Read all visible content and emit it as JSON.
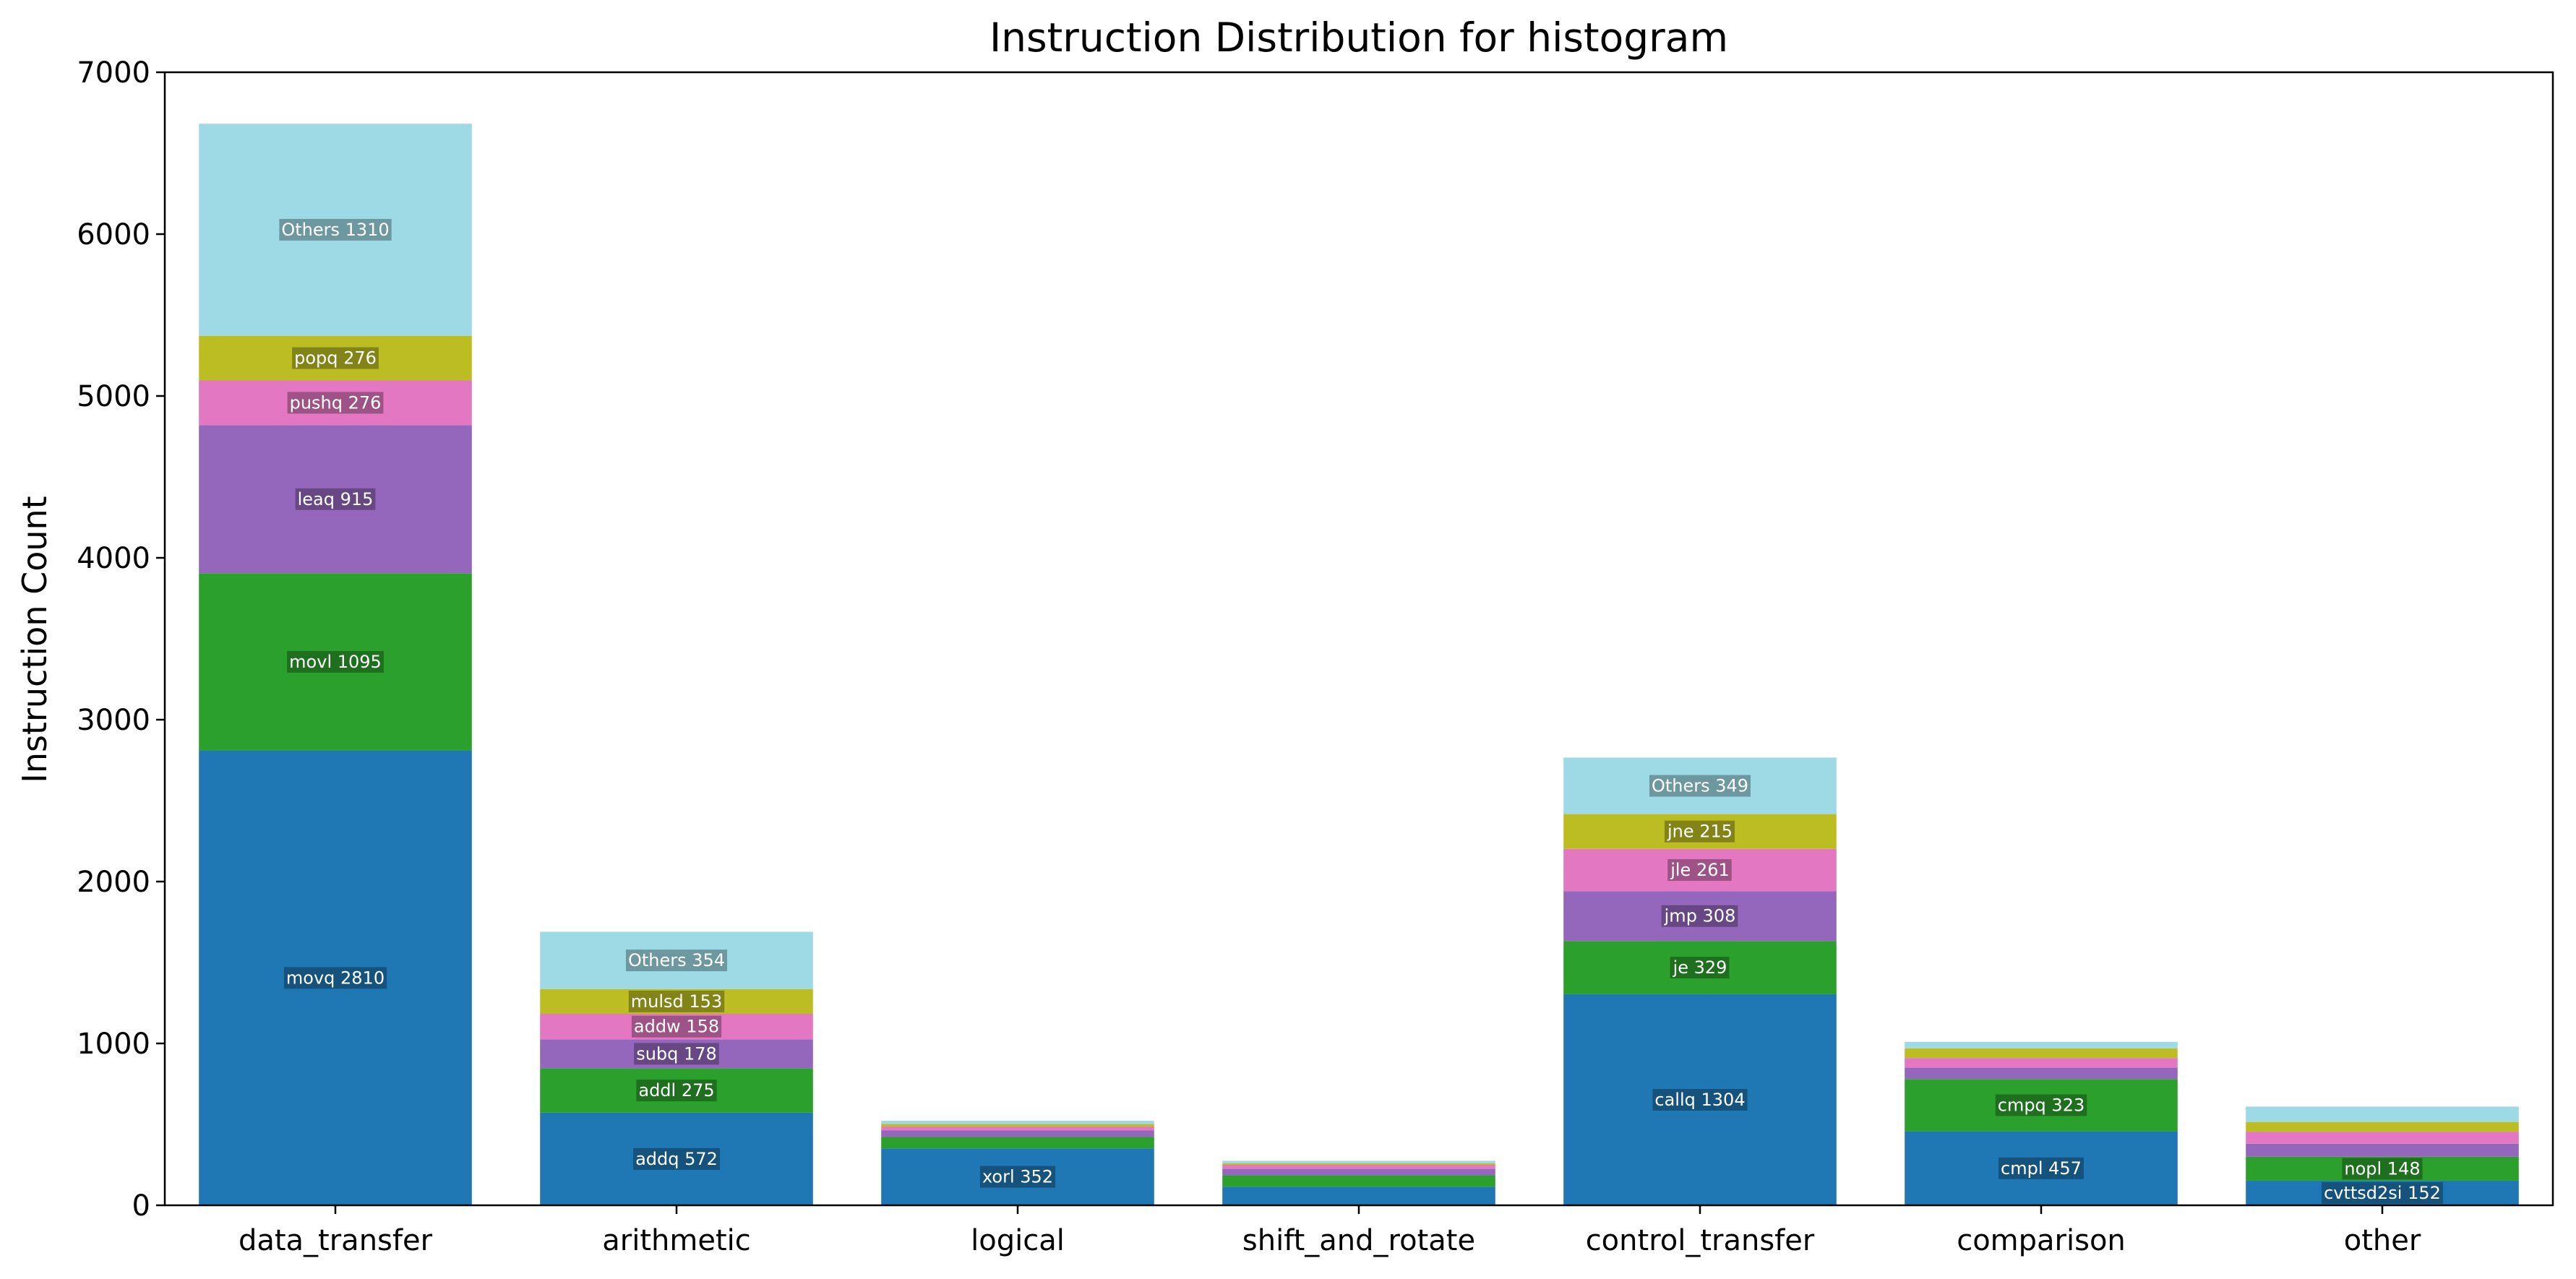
{
  "chart_data": {
    "type": "bar",
    "stacked": true,
    "title": "Instruction Distribution for histogram",
    "xlabel": "",
    "ylabel": "Instruction Count",
    "ylim": [
      0,
      7000
    ],
    "yticks": [
      0,
      1000,
      2000,
      3000,
      4000,
      5000,
      6000,
      7000
    ],
    "grid": false,
    "legend": "none",
    "colors": [
      "#1f77b4",
      "#2ca02c",
      "#9467bd",
      "#e377c2",
      "#bcbd22",
      "#9edae5"
    ],
    "categories": [
      "data_transfer",
      "arithmetic",
      "logical",
      "shift_and_rotate",
      "control_transfer",
      "comparison",
      "other"
    ],
    "stacks": [
      {
        "category": "data_transfer",
        "segments": [
          {
            "name": "movq",
            "value": 2810,
            "label": "movq 2810"
          },
          {
            "name": "movl",
            "value": 1095,
            "label": "movl 1095"
          },
          {
            "name": "leaq",
            "value": 915,
            "label": "leaq 915"
          },
          {
            "name": "pushq",
            "value": 276,
            "label": "pushq 276"
          },
          {
            "name": "popq",
            "value": 276,
            "label": "popq 276"
          },
          {
            "name": "Others",
            "value": 1310,
            "label": "Others 1310"
          }
        ]
      },
      {
        "category": "arithmetic",
        "segments": [
          {
            "name": "addq",
            "value": 572,
            "label": "addq 572"
          },
          {
            "name": "addl",
            "value": 275,
            "label": "addl 275"
          },
          {
            "name": "subq",
            "value": 178,
            "label": "subq 178"
          },
          {
            "name": "addw",
            "value": 158,
            "label": "addw 158"
          },
          {
            "name": "mulsd",
            "value": 153,
            "label": "mulsd 153"
          },
          {
            "name": "Others",
            "value": 354,
            "label": "Others 354"
          }
        ]
      },
      {
        "category": "logical",
        "segments": [
          {
            "name": "xorl",
            "value": 352,
            "label": "xorl 352"
          },
          {
            "value": 70,
            "label": ""
          },
          {
            "value": 40,
            "label": ""
          },
          {
            "value": 25,
            "label": ""
          },
          {
            "value": 15,
            "label": ""
          },
          {
            "value": 20,
            "label": ""
          }
        ]
      },
      {
        "category": "shift_and_rotate",
        "segments": [
          {
            "value": 115,
            "label": ""
          },
          {
            "value": 70,
            "label": ""
          },
          {
            "value": 40,
            "label": ""
          },
          {
            "value": 25,
            "label": ""
          },
          {
            "value": 10,
            "label": ""
          },
          {
            "value": 15,
            "label": ""
          }
        ]
      },
      {
        "category": "control_transfer",
        "segments": [
          {
            "name": "callq",
            "value": 1304,
            "label": "callq 1304"
          },
          {
            "name": "je",
            "value": 329,
            "label": "je 329"
          },
          {
            "name": "jmp",
            "value": 308,
            "label": "jmp 308"
          },
          {
            "name": "jle",
            "value": 261,
            "label": "jle 261"
          },
          {
            "name": "jne",
            "value": 215,
            "label": "jne 215"
          },
          {
            "name": "Others",
            "value": 349,
            "label": "Others 349"
          }
        ]
      },
      {
        "category": "comparison",
        "segments": [
          {
            "name": "cmpl",
            "value": 457,
            "label": "cmpl 457"
          },
          {
            "name": "cmpq",
            "value": 323,
            "label": "cmpq 323"
          },
          {
            "value": 70,
            "label": ""
          },
          {
            "value": 60,
            "label": ""
          },
          {
            "value": 60,
            "label": ""
          },
          {
            "value": 40,
            "label": ""
          }
        ]
      },
      {
        "category": "other",
        "segments": [
          {
            "name": "cvttsd2si",
            "value": 152,
            "label": "cvttsd2si 152"
          },
          {
            "name": "nopl",
            "value": 148,
            "label": "nopl 148"
          },
          {
            "value": 80,
            "label": ""
          },
          {
            "value": 75,
            "label": ""
          },
          {
            "value": 60,
            "label": ""
          },
          {
            "value": 95,
            "label": ""
          }
        ]
      }
    ]
  }
}
